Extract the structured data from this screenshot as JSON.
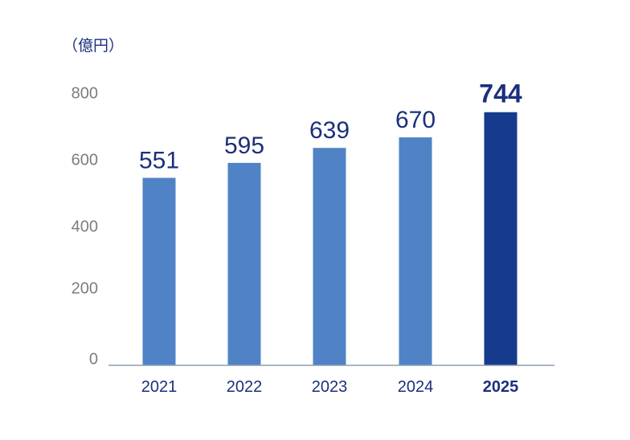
{
  "chart_data": {
    "type": "bar",
    "unit_label": "（億円）",
    "categories": [
      "2021",
      "2022",
      "2023",
      "2024",
      "2025"
    ],
    "values": [
      551,
      595,
      639,
      670,
      744
    ],
    "highlight_index": 4,
    "yticks": [
      0,
      200,
      400,
      600,
      800
    ],
    "ylim": [
      0,
      800
    ],
    "colors": {
      "bar": "#4f83c6",
      "highlight": "#163a8c",
      "text": "#1b2f7d",
      "axis": "#8e9fb3",
      "tick": "#7a7d82"
    },
    "grid": false
  }
}
